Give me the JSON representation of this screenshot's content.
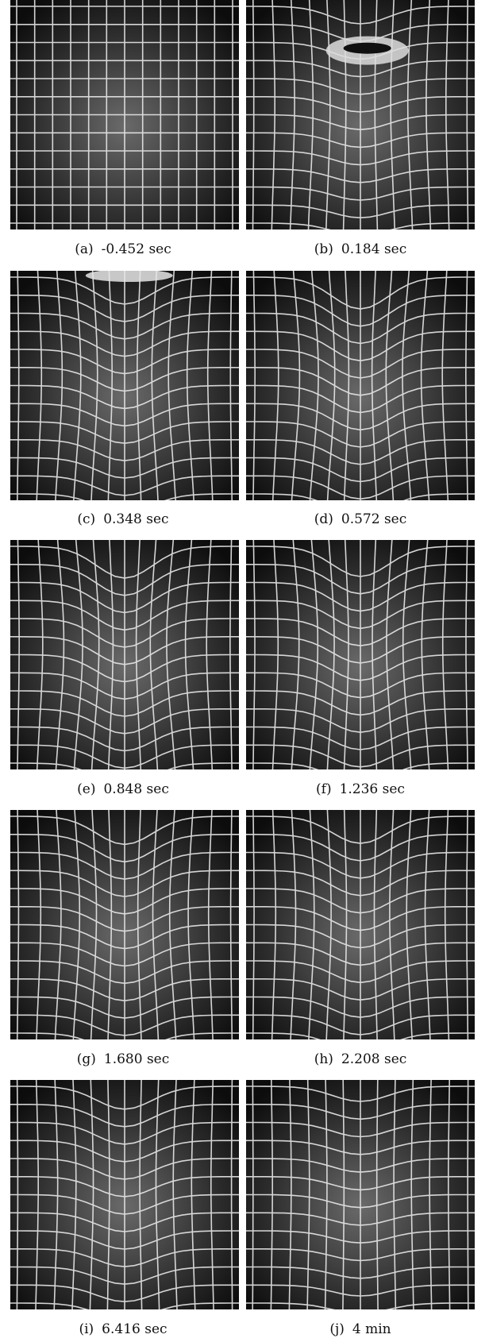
{
  "panels": [
    {
      "label": "(a)",
      "time": "-0.452 sec"
    },
    {
      "label": "(b)",
      "time": "0.184 sec"
    },
    {
      "label": "(c)",
      "time": "0.348 sec"
    },
    {
      "label": "(d)",
      "time": "0.572 sec"
    },
    {
      "label": "(e)",
      "time": "0.848 sec"
    },
    {
      "label": "(f)",
      "time": "1.236 sec"
    },
    {
      "label": "(g)",
      "time": "1.680 sec"
    },
    {
      "label": "(h)",
      "time": "2.208 sec"
    },
    {
      "label": "(i)",
      "time": "6.416 sec"
    },
    {
      "label": "(j)",
      "time": "4 min"
    }
  ]
}
